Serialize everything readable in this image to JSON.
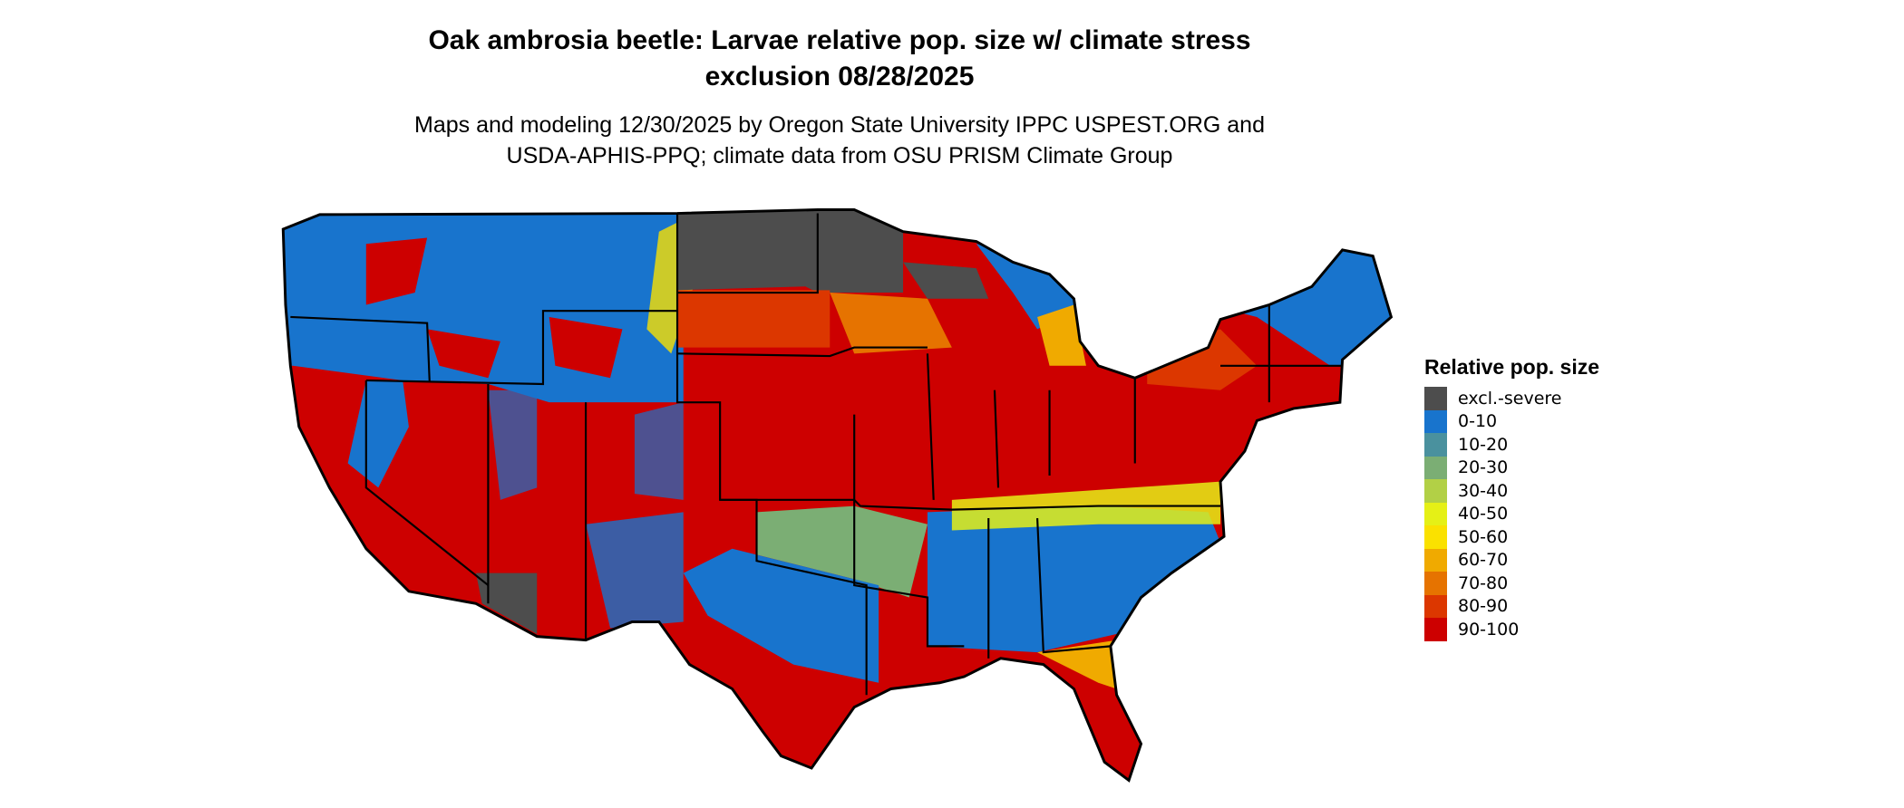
{
  "title": {
    "line1": "Oak ambrosia beetle: Larvae relative pop. size w/ climate stress",
    "line2": "exclusion 08/28/2025"
  },
  "subtitle": {
    "line1": "Maps and modeling 12/30/2025 by Oregon State University IPPC USPEST.ORG and",
    "line2": "USDA-APHIS-PPQ; climate data from OSU PRISM Climate Group"
  },
  "legend": {
    "title": "Relative pop. size",
    "items": [
      {
        "label": "excl.-severe",
        "color": "#4d4d4d"
      },
      {
        "label": "0-10",
        "color": "#1874cd"
      },
      {
        "label": "10-20",
        "color": "#4a919e"
      },
      {
        "label": "20-30",
        "color": "#7bae74"
      },
      {
        "label": "30-40",
        "color": "#b2d046"
      },
      {
        "label": "40-50",
        "color": "#e5f016"
      },
      {
        "label": "50-60",
        "color": "#fae100"
      },
      {
        "label": "60-70",
        "color": "#f0aa00"
      },
      {
        "label": "70-80",
        "color": "#e67300"
      },
      {
        "label": "80-90",
        "color": "#dc3700"
      },
      {
        "label": "90-100",
        "color": "#cd0000"
      }
    ]
  }
}
